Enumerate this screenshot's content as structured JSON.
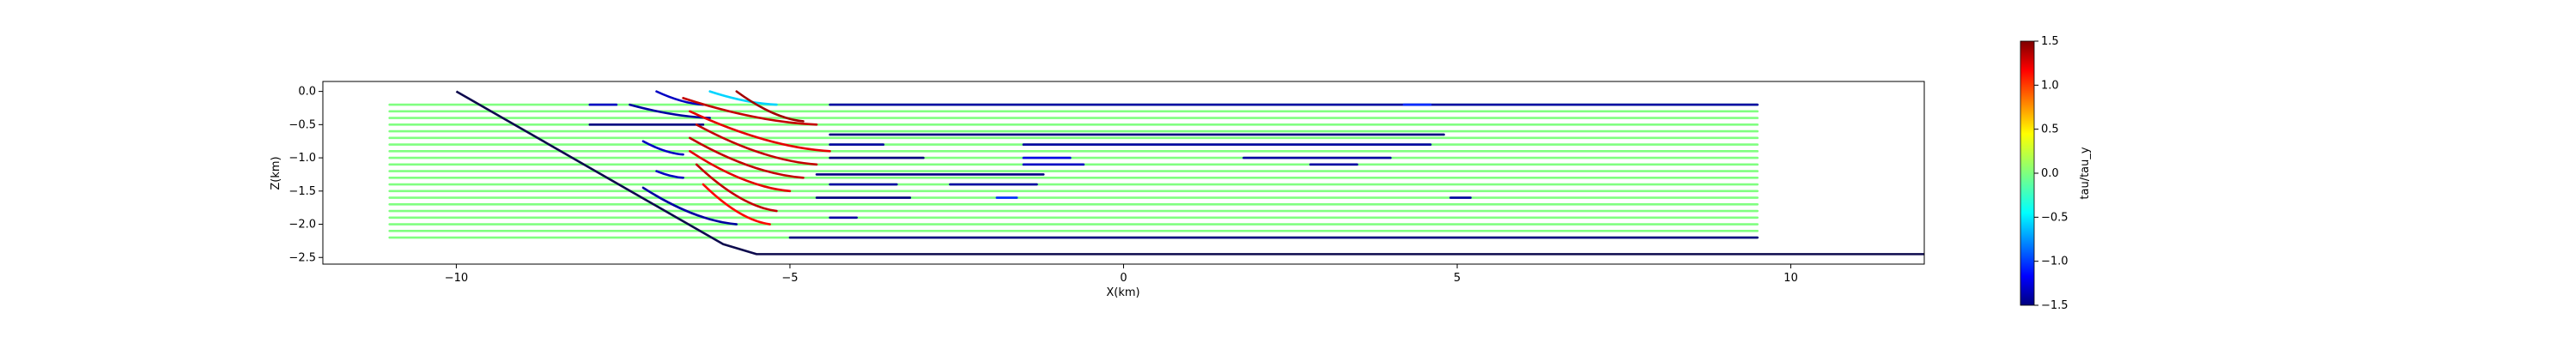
{
  "chart_data": {
    "type": "line",
    "xlabel": "X(km)",
    "ylabel": "Z(km)",
    "xlim": [
      -12,
      12
    ],
    "ylim": [
      -2.6,
      0.15
    ],
    "x_ticks": [
      -10,
      -5,
      0,
      5,
      10
    ],
    "x_tick_labels": [
      "−10",
      "−5",
      "0",
      "5",
      "10"
    ],
    "y_ticks": [
      0.0,
      -0.5,
      -1.0,
      -1.5,
      -2.0,
      -2.5
    ],
    "y_tick_labels": [
      "0.0",
      "−0.5",
      "−1.0",
      "−1.5",
      "−2.0",
      "−2.5"
    ],
    "colorbar": {
      "label": "tau/tau_y",
      "range": [
        -1.5,
        1.5
      ],
      "ticks": [
        1.5,
        1.0,
        0.5,
        0.0,
        -0.5,
        -1.0,
        -1.5
      ],
      "tick_labels": [
        "1.5",
        "1.0",
        "0.5",
        "0.0",
        "−0.5",
        "−1.0",
        "−1.5"
      ],
      "colormap": "jet"
    },
    "boundary": {
      "name": "fault",
      "x": [
        -10.0,
        -6.0,
        -5.5,
        12.0
      ],
      "y": [
        0.0,
        -2.3,
        -2.45,
        -2.45
      ],
      "color": "#0d0a4d"
    },
    "layers": [
      {
        "z": -0.2,
        "x_start": -11.0,
        "x_end": 9.5
      },
      {
        "z": -0.3,
        "x_start": -11.0,
        "x_end": 9.5
      },
      {
        "z": -0.4,
        "x_start": -11.0,
        "x_end": 9.5
      },
      {
        "z": -0.5,
        "x_start": -11.0,
        "x_end": 9.5
      },
      {
        "z": -0.6,
        "x_start": -11.0,
        "x_end": 9.5
      },
      {
        "z": -0.7,
        "x_start": -11.0,
        "x_end": 9.5
      },
      {
        "z": -0.8,
        "x_start": -11.0,
        "x_end": 9.5
      },
      {
        "z": -0.9,
        "x_start": -11.0,
        "x_end": 9.5
      },
      {
        "z": -1.0,
        "x_start": -11.0,
        "x_end": 9.5
      },
      {
        "z": -1.1,
        "x_start": -11.0,
        "x_end": 9.5
      },
      {
        "z": -1.2,
        "x_start": -11.0,
        "x_end": 9.5
      },
      {
        "z": -1.3,
        "x_start": -11.0,
        "x_end": 9.5
      },
      {
        "z": -1.4,
        "x_start": -11.0,
        "x_end": 9.5
      },
      {
        "z": -1.5,
        "x_start": -11.0,
        "x_end": 9.5
      },
      {
        "z": -1.6,
        "x_start": -11.0,
        "x_end": 9.5
      },
      {
        "z": -1.7,
        "x_start": -11.0,
        "x_end": 9.5
      },
      {
        "z": -1.8,
        "x_start": -11.0,
        "x_end": 9.5
      },
      {
        "z": -1.9,
        "x_start": -11.0,
        "x_end": 9.5
      },
      {
        "z": -2.0,
        "x_start": -11.0,
        "x_end": 9.5
      },
      {
        "z": -2.1,
        "x_start": -11.0,
        "x_end": 9.5
      },
      {
        "z": -2.2,
        "x_start": -11.0,
        "x_end": 9.5
      }
    ],
    "fold_segments": [
      {
        "x_start": -7.0,
        "x_end": -6.3,
        "z_start": 0.0,
        "z_end": -0.2,
        "value": -1.3
      },
      {
        "x_start": -7.4,
        "x_end": -6.2,
        "z_start": -0.2,
        "z_end": -0.4,
        "value": -1.4
      },
      {
        "x_start": -8.0,
        "x_end": -6.3,
        "z_start": -0.5,
        "z_end": -0.5,
        "value": -1.5
      },
      {
        "x_start": -7.2,
        "x_end": -6.6,
        "z_start": -0.75,
        "z_end": -0.95,
        "value": -1.3
      },
      {
        "x_start": -7.0,
        "x_end": -6.6,
        "z_start": -1.2,
        "z_end": -1.3,
        "value": -1.3
      },
      {
        "x_start": -7.2,
        "x_end": -5.8,
        "z_start": -1.45,
        "z_end": -2.0,
        "value": -1.4
      },
      {
        "x_start": -6.2,
        "x_end": -5.2,
        "z_start": 0.0,
        "z_end": -0.2,
        "value": -0.5
      },
      {
        "x_start": -6.6,
        "x_end": -4.6,
        "z_start": -0.1,
        "z_end": -0.5,
        "value": 1.3
      },
      {
        "x_start": -6.5,
        "x_end": -4.4,
        "z_start": -0.3,
        "z_end": -0.9,
        "value": 1.2
      },
      {
        "x_start": -6.4,
        "x_end": -4.6,
        "z_start": -0.5,
        "z_end": -1.1,
        "value": 1.3
      },
      {
        "x_start": -6.5,
        "x_end": -4.8,
        "z_start": -0.7,
        "z_end": -1.3,
        "value": 1.3
      },
      {
        "x_start": -6.5,
        "x_end": -5.0,
        "z_start": -0.9,
        "z_end": -1.5,
        "value": 1.2
      },
      {
        "x_start": -6.4,
        "x_end": -5.2,
        "z_start": -1.1,
        "z_end": -1.8,
        "value": 1.3
      },
      {
        "x_start": -6.3,
        "x_end": -5.3,
        "z_start": -1.4,
        "z_end": -2.0,
        "value": 1.1
      },
      {
        "x_start": -5.8,
        "x_end": -4.8,
        "z_start": 0.0,
        "z_end": -0.45,
        "value": 1.4
      },
      {
        "x_start": -4.4,
        "x_end": 9.5,
        "z_start": -0.2,
        "z_end": -0.2,
        "value": -1.4
      },
      {
        "x_start": -4.4,
        "x_end": 4.8,
        "z_start": -0.65,
        "z_end": -0.65,
        "value": -1.5
      },
      {
        "x_start": -1.5,
        "x_end": 4.6,
        "z_start": -0.8,
        "z_end": -0.8,
        "value": -1.4
      },
      {
        "x_start": -4.4,
        "x_end": -3.6,
        "z_start": -0.8,
        "z_end": -0.8,
        "value": -1.4
      },
      {
        "x_start": -4.4,
        "x_end": -3.0,
        "z_start": -1.0,
        "z_end": -1.0,
        "value": -1.5
      },
      {
        "x_start": 1.8,
        "x_end": 4.0,
        "z_start": -1.0,
        "z_end": -1.0,
        "value": -1.4
      },
      {
        "x_start": -1.5,
        "x_end": -0.8,
        "z_start": -1.0,
        "z_end": -1.0,
        "value": -1.2
      },
      {
        "x_start": -1.5,
        "x_end": -0.6,
        "z_start": -1.1,
        "z_end": -1.1,
        "value": -1.3
      },
      {
        "x_start": 2.8,
        "x_end": 3.5,
        "z_start": -1.1,
        "z_end": -1.1,
        "value": -1.4
      },
      {
        "x_start": -4.6,
        "x_end": -1.2,
        "z_start": -1.25,
        "z_end": -1.25,
        "value": -1.5
      },
      {
        "x_start": -4.4,
        "x_end": -3.4,
        "z_start": -1.4,
        "z_end": -1.4,
        "value": -1.4
      },
      {
        "x_start": -2.6,
        "x_end": -1.3,
        "z_start": -1.4,
        "z_end": -1.4,
        "value": -1.4
      },
      {
        "x_start": -4.6,
        "x_end": -3.2,
        "z_start": -1.6,
        "z_end": -1.6,
        "value": -1.5
      },
      {
        "x_start": -1.9,
        "x_end": -1.6,
        "z_start": -1.6,
        "z_end": -1.6,
        "value": -1.0
      },
      {
        "x_start": 4.9,
        "x_end": 5.2,
        "z_start": -1.6,
        "z_end": -1.6,
        "value": -1.4
      },
      {
        "x_start": -4.4,
        "x_end": -4.0,
        "z_start": -1.9,
        "z_end": -1.9,
        "value": -1.4
      },
      {
        "x_start": -5.0,
        "x_end": 9.5,
        "z_start": -2.2,
        "z_end": -2.2,
        "value": -1.5
      },
      {
        "x_start": 4.2,
        "x_end": 4.6,
        "z_start": -0.2,
        "z_end": -0.2,
        "value": -1.0
      },
      {
        "x_start": -8.0,
        "x_end": -7.6,
        "z_start": -0.2,
        "z_end": -0.2,
        "value": -1.3
      }
    ],
    "background_value": 0.0,
    "grid": false
  }
}
